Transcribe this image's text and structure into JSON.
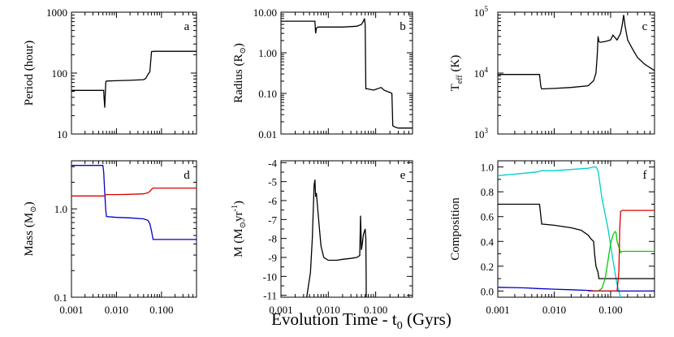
{
  "figure": {
    "xlabel": "Evolution Time - t",
    "xlabel_sub": "0",
    "xlabel_tail": " (Gyrs)"
  },
  "chart_data": [
    {
      "id": "a",
      "type": "line",
      "panel_label": "a",
      "ylabel": "Period (hour)",
      "xscale": "log",
      "yscale": "log",
      "xlim": [
        0.001,
        0.6
      ],
      "ylim": [
        10,
        1000
      ],
      "xticks": [
        0.001,
        0.01,
        0.1
      ],
      "xtick_labels": [
        "0.001",
        "0.010",
        "0.100"
      ],
      "yticks": [
        10,
        100,
        1000
      ],
      "ytick_labels": [
        "10",
        "100",
        "1000"
      ],
      "series": [
        {
          "color": "#000000",
          "x": [
            0.001,
            0.0052,
            0.0053,
            0.0055,
            0.0056,
            0.0058,
            0.006,
            0.01,
            0.02,
            0.04,
            0.045,
            0.05,
            0.055,
            0.06,
            0.07,
            0.1,
            0.3,
            0.6
          ],
          "y": [
            52,
            52,
            40,
            27,
            40,
            72,
            74,
            75,
            76,
            78,
            82,
            95,
            105,
            225,
            228,
            228,
            228,
            228
          ]
        }
      ]
    },
    {
      "id": "b",
      "type": "line",
      "panel_label": "b",
      "ylabel": "Radius (R",
      "ylabel_sym": "⊙",
      "ylabel_tail": ")",
      "xscale": "log",
      "yscale": "log",
      "xlim": [
        0.001,
        0.6
      ],
      "ylim": [
        0.01,
        10
      ],
      "xticks": [
        0.001,
        0.01,
        0.1
      ],
      "xtick_labels": [
        "0.001",
        "0.010",
        "0.100"
      ],
      "yticks": [
        0.01,
        0.1,
        1,
        10
      ],
      "ytick_labels": [
        "0.01",
        "0.10",
        "1.00",
        "10.00"
      ],
      "series": [
        {
          "color": "#000000",
          "x": [
            0.001,
            0.0052,
            0.0054,
            0.0056,
            0.006,
            0.01,
            0.02,
            0.04,
            0.05,
            0.055,
            0.058,
            0.06,
            0.062,
            0.065,
            0.09,
            0.11,
            0.13,
            0.15,
            0.18,
            0.2,
            0.22,
            0.23,
            0.25,
            0.3,
            0.6
          ],
          "y": [
            6.0,
            6.0,
            3.0,
            4.0,
            4.3,
            4.3,
            4.3,
            4.5,
            5.0,
            6.0,
            7.0,
            5.0,
            0.13,
            0.13,
            0.12,
            0.13,
            0.14,
            0.12,
            0.11,
            0.105,
            0.1,
            0.016,
            0.015,
            0.014,
            0.014
          ]
        }
      ]
    },
    {
      "id": "c",
      "type": "line",
      "panel_label": "c",
      "ylabel": "T",
      "ylabel_sub": "eff",
      "ylabel_tail": " (K)",
      "xscale": "log",
      "yscale": "log",
      "xlim": [
        0.001,
        0.6
      ],
      "ylim": [
        1000,
        100000
      ],
      "xticks": [
        0.001,
        0.01,
        0.1
      ],
      "xtick_labels": [
        "0.001",
        "0.010",
        "0.100"
      ],
      "yticks": [
        1000,
        10000,
        100000
      ],
      "ytick_labels": [
        "10^3",
        "10^4",
        "10^5"
      ],
      "series": [
        {
          "color": "#000000",
          "x": [
            0.001,
            0.0055,
            0.0058,
            0.006,
            0.01,
            0.02,
            0.04,
            0.05,
            0.055,
            0.058,
            0.06,
            0.062,
            0.065,
            0.08,
            0.1,
            0.11,
            0.13,
            0.15,
            0.16,
            0.17,
            0.18,
            0.2,
            0.25,
            0.3,
            0.4,
            0.6
          ],
          "y": [
            9500,
            9500,
            6000,
            5500,
            5600,
            5800,
            6200,
            7500,
            10000,
            20000,
            40000,
            33000,
            32000,
            33000,
            35000,
            42000,
            35000,
            45000,
            60000,
            90000,
            60000,
            35000,
            24000,
            18000,
            14000,
            11000
          ]
        }
      ]
    },
    {
      "id": "d",
      "type": "line",
      "panel_label": "d",
      "ylabel": "Mass (M",
      "ylabel_sym": "⊙",
      "ylabel_tail": ")",
      "xscale": "log",
      "yscale": "log",
      "xlim": [
        0.001,
        0.6
      ],
      "ylim": [
        0.1,
        3.5
      ],
      "xticks": [
        0.001,
        0.01,
        0.1
      ],
      "xtick_labels": [
        "0.001",
        "0.010",
        "0.100"
      ],
      "yticks": [
        0.1,
        1.0
      ],
      "ytick_labels": [
        "0.1",
        "1.0"
      ],
      "series": [
        {
          "color": "#0000cc",
          "x": [
            0.001,
            0.005,
            0.0052,
            0.0055,
            0.0058,
            0.006,
            0.01,
            0.02,
            0.04,
            0.05,
            0.055,
            0.06,
            0.065,
            0.1,
            0.6
          ],
          "y": [
            3.1,
            3.1,
            2.6,
            1.5,
            0.95,
            0.82,
            0.8,
            0.79,
            0.77,
            0.74,
            0.68,
            0.56,
            0.45,
            0.45,
            0.45
          ]
        },
        {
          "color": "#dd0000",
          "x": [
            0.001,
            0.005,
            0.0052,
            0.0055,
            0.0058,
            0.006,
            0.01,
            0.02,
            0.04,
            0.05,
            0.055,
            0.06,
            0.065,
            0.1,
            0.6
          ],
          "y": [
            1.4,
            1.4,
            1.4,
            1.4,
            1.45,
            1.45,
            1.45,
            1.46,
            1.48,
            1.52,
            1.58,
            1.66,
            1.72,
            1.72,
            1.72
          ]
        }
      ]
    },
    {
      "id": "e",
      "type": "line",
      "panel_label": "e",
      "ylabel": "M",
      "ylabel_open": " (M",
      "ylabel_sym": "⊙",
      "ylabel_yr": "yr",
      "ylabel_sup": "-1",
      "ylabel_tail": ")",
      "xscale": "log",
      "yscale": "linear",
      "xlim": [
        0.001,
        0.6
      ],
      "ylim": [
        -11.1,
        -3.9
      ],
      "xticks": [
        0.001,
        0.01,
        0.1
      ],
      "xtick_labels": [
        "0.001",
        "0.010",
        "0.100"
      ],
      "yticks": [
        -11,
        -10,
        -9,
        -8,
        -7,
        -6,
        -5,
        -4
      ],
      "ytick_labels": [
        "-11",
        "-10",
        "-9",
        "-8",
        "-7",
        "-6",
        "-5",
        "-4"
      ],
      "series": [
        {
          "color": "#000000",
          "x": [
            0.0035,
            0.0038,
            0.0042,
            0.0046,
            0.005,
            0.0052,
            0.0054,
            0.0056,
            0.006,
            0.0065,
            0.007,
            0.008,
            0.01,
            0.015,
            0.02,
            0.03,
            0.04,
            0.046,
            0.048,
            0.05,
            0.052,
            0.055,
            0.06,
            0.062,
            0.063,
            0.0632
          ],
          "y": [
            -11.1,
            -10.5,
            -9.8,
            -8.0,
            -5.2,
            -4.9,
            -5.8,
            -5.6,
            -6.5,
            -7.5,
            -8.4,
            -9.0,
            -9.15,
            -9.15,
            -9.1,
            -9.05,
            -9.0,
            -8.9,
            -6.8,
            -8.6,
            -8.3,
            -7.8,
            -7.5,
            -8.0,
            -10.0,
            -11.1
          ]
        }
      ]
    },
    {
      "id": "f",
      "type": "line",
      "panel_label": "f",
      "ylabel": "Composition",
      "xscale": "log",
      "yscale": "linear",
      "xlim": [
        0.001,
        0.6
      ],
      "ylim": [
        -0.05,
        1.05
      ],
      "xticks": [
        0.001,
        0.01,
        0.1
      ],
      "xtick_labels": [
        "0.001",
        "0.010",
        "0.100"
      ],
      "yticks": [
        0.0,
        0.2,
        0.4,
        0.6,
        0.8,
        1.0
      ],
      "ytick_labels": [
        "0.0",
        "0.2",
        "0.4",
        "0.6",
        "0.8",
        "1.0"
      ],
      "series": [
        {
          "color": "#00cccc",
          "x": [
            0.001,
            0.003,
            0.005,
            0.006,
            0.01,
            0.02,
            0.04,
            0.05,
            0.055,
            0.06,
            0.07,
            0.09,
            0.11,
            0.13,
            0.15
          ],
          "y": [
            0.93,
            0.95,
            0.96,
            0.97,
            0.97,
            0.98,
            0.99,
            1.0,
            1.0,
            0.97,
            0.75,
            0.5,
            0.25,
            0.05,
            -0.05
          ]
        },
        {
          "color": "#000000",
          "x": [
            0.001,
            0.0055,
            0.006,
            0.01,
            0.02,
            0.03,
            0.04,
            0.045,
            0.05,
            0.052,
            0.055,
            0.06,
            0.062,
            0.065,
            0.08,
            0.1,
            0.2,
            0.6
          ],
          "y": [
            0.7,
            0.7,
            0.54,
            0.53,
            0.51,
            0.49,
            0.45,
            0.42,
            0.4,
            0.3,
            0.2,
            0.15,
            0.1,
            0.1,
            0.1,
            0.1,
            0.1,
            0.1
          ]
        },
        {
          "color": "#0000cc",
          "x": [
            0.001,
            0.003,
            0.005,
            0.01,
            0.02,
            0.04,
            0.05,
            0.06,
            0.065,
            0.6
          ],
          "y": [
            0.03,
            0.025,
            0.02,
            0.015,
            0.01,
            0.005,
            0.002,
            0.0,
            0.0,
            0.0
          ]
        },
        {
          "color": "#00cc00",
          "x": [
            0.05,
            0.06,
            0.07,
            0.08,
            0.09,
            0.1,
            0.11,
            0.12,
            0.125,
            0.13,
            0.15,
            0.16,
            0.18,
            0.2,
            0.3,
            0.6
          ],
          "y": [
            0.0,
            0.0,
            0.02,
            0.1,
            0.25,
            0.38,
            0.45,
            0.48,
            0.47,
            0.4,
            0.31,
            0.32,
            0.32,
            0.32,
            0.32,
            0.32
          ]
        },
        {
          "color": "#dd0000",
          "x": [
            0.04,
            0.06,
            0.08,
            0.1,
            0.12,
            0.13,
            0.14,
            0.145,
            0.15,
            0.16,
            0.2,
            0.3,
            0.6
          ],
          "y": [
            0.0,
            0.0,
            0.0,
            0.0,
            0.0,
            0.0,
            0.15,
            0.5,
            0.64,
            0.65,
            0.65,
            0.65,
            0.65
          ]
        }
      ]
    }
  ]
}
